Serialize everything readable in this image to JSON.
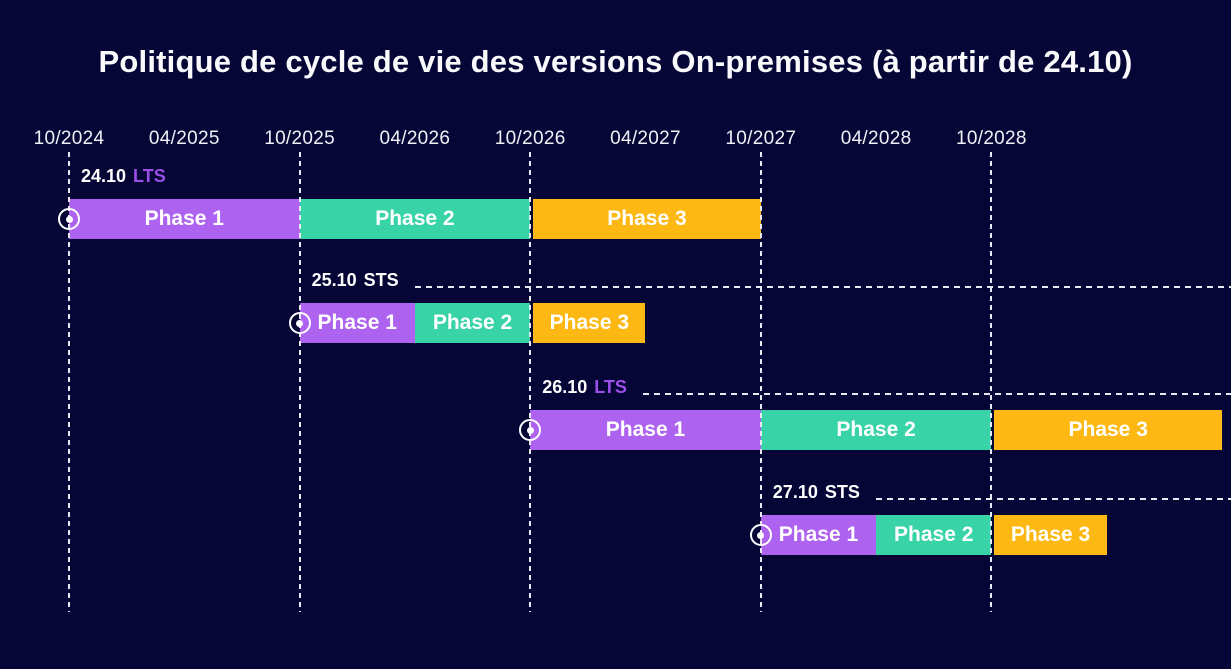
{
  "title": "Politique de cycle de vie des versions On-premises (à partir de 24.10)",
  "colors": {
    "background": "#050536",
    "phase1": "#ad62f0",
    "phase2": "#38d3a6",
    "phase3": "#fdb813",
    "lts_accent": "#9b4fe8",
    "sts_accent": "#ffffff",
    "text": "#ffffff",
    "gridline": "#e9e9f4"
  },
  "chart_data": {
    "type": "bar",
    "variant": "gantt-timeline",
    "title": "Politique de cycle de vie des versions On-premises (à partir de 24.10)",
    "xlabel": "",
    "ylabel": "",
    "x_tick_labels": [
      "10/2024",
      "04/2025",
      "10/2025",
      "04/2026",
      "10/2026",
      "04/2027",
      "10/2027",
      "04/2028",
      "10/2028"
    ],
    "gridlines_at": [
      "10/2024",
      "10/2025",
      "10/2026",
      "10/2027",
      "10/2028"
    ],
    "grid": "dashed-october-verticals",
    "legend_position": "none",
    "phase_colors": {
      "Phase 1": "#ad62f0",
      "Phase 2": "#38d3a6",
      "Phase 3": "#fdb813"
    },
    "rows": [
      {
        "version": "24.10",
        "channel": "LTS",
        "channel_color": "#9b4fe8",
        "has_leader_line": false,
        "phases": [
          {
            "label": "Phase 1",
            "start": "10/2024",
            "end": "10/2025"
          },
          {
            "label": "Phase 2",
            "start": "10/2025",
            "end": "10/2026"
          },
          {
            "label": "Phase 3",
            "start": "10/2026",
            "end": "10/2027"
          }
        ]
      },
      {
        "version": "25.10",
        "channel": "STS",
        "channel_color": "#ffffff",
        "has_leader_line": true,
        "phases": [
          {
            "label": "Phase 1",
            "start": "10/2025",
            "end": "04/2026"
          },
          {
            "label": "Phase 2",
            "start": "04/2026",
            "end": "10/2026"
          },
          {
            "label": "Phase 3",
            "start": "10/2026",
            "end": "04/2027"
          }
        ]
      },
      {
        "version": "26.10",
        "channel": "LTS",
        "channel_color": "#9b4fe8",
        "has_leader_line": true,
        "phases": [
          {
            "label": "Phase 1",
            "start": "10/2026",
            "end": "10/2027"
          },
          {
            "label": "Phase 2",
            "start": "10/2027",
            "end": "10/2028"
          },
          {
            "label": "Phase 3",
            "start": "10/2028",
            "end": "10/2029"
          }
        ]
      },
      {
        "version": "27.10",
        "channel": "STS",
        "channel_color": "#ffffff",
        "has_leader_line": true,
        "phases": [
          {
            "label": "Phase 1",
            "start": "10/2027",
            "end": "04/2028"
          },
          {
            "label": "Phase 2",
            "start": "04/2028",
            "end": "10/2028"
          },
          {
            "label": "Phase 3",
            "start": "10/2028",
            "end": "04/2029"
          }
        ]
      }
    ]
  }
}
